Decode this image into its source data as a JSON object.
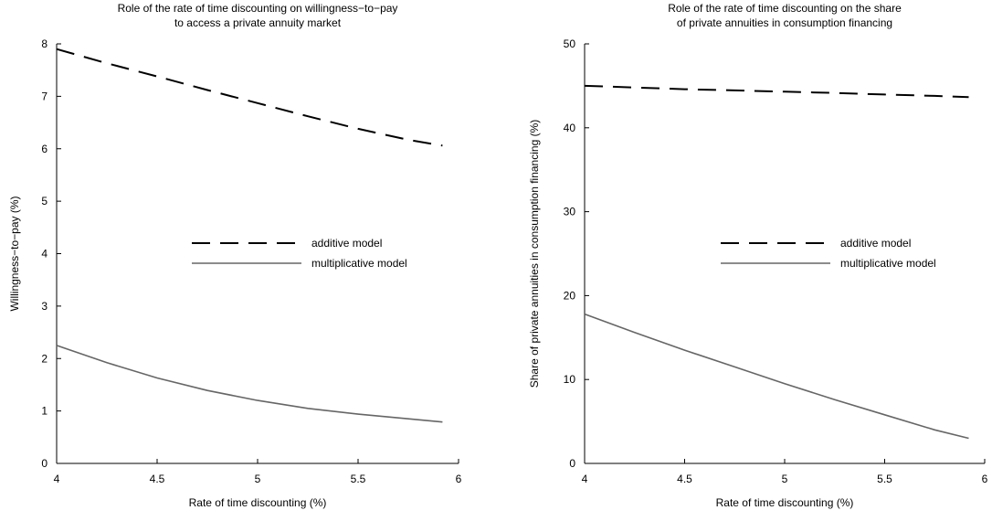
{
  "chart_data": [
    {
      "type": "line",
      "title_lines": [
        "Role of the rate of time discounting on willingness−to−pay",
        "to access a private annuity market"
      ],
      "xlabel": "Rate of time discounting (%)",
      "ylabel": "Willingness−to−pay (%)",
      "xlim": [
        4,
        6
      ],
      "ylim": [
        0,
        8
      ],
      "xticks": [
        4,
        4.5,
        5,
        5.5,
        6
      ],
      "xtick_labels": [
        "4",
        "4.5",
        "5",
        "5.5",
        "6"
      ],
      "yticks": [
        0,
        1,
        2,
        3,
        4,
        5,
        6,
        7,
        8
      ],
      "ytick_labels": [
        "0",
        "1",
        "2",
        "3",
        "4",
        "5",
        "6",
        "7",
        "8"
      ],
      "grid": false,
      "legend_position": "center-right",
      "x": [
        4.0,
        4.25,
        4.5,
        4.75,
        5.0,
        5.25,
        5.5,
        5.75,
        5.92
      ],
      "series": [
        {
          "name": "additive model",
          "style": "dashed",
          "color": "#000000",
          "values": [
            7.9,
            7.63,
            7.38,
            7.12,
            6.87,
            6.62,
            6.38,
            6.17,
            6.06
          ]
        },
        {
          "name": "multiplicative model",
          "style": "solid",
          "color": "#666666",
          "values": [
            2.25,
            1.92,
            1.63,
            1.39,
            1.2,
            1.05,
            0.94,
            0.85,
            0.79
          ]
        }
      ]
    },
    {
      "type": "line",
      "title_lines": [
        "Role of the rate of time discounting on the share",
        "of private annuities in consumption financing"
      ],
      "xlabel": "Rate of time discounting (%)",
      "ylabel": "Share of private annuities in consumption financing (%)",
      "xlim": [
        4,
        6
      ],
      "ylim": [
        0,
        50
      ],
      "xticks": [
        4,
        4.5,
        5,
        5.5,
        6
      ],
      "xtick_labels": [
        "4",
        "4.5",
        "5",
        "5.5",
        "6"
      ],
      "yticks": [
        0,
        10,
        20,
        30,
        40,
        50
      ],
      "ytick_labels": [
        "0",
        "10",
        "20",
        "30",
        "40",
        "50"
      ],
      "grid": false,
      "legend_position": "center-right",
      "x": [
        4.0,
        4.25,
        4.5,
        4.75,
        5.0,
        5.25,
        5.5,
        5.75,
        5.92
      ],
      "series": [
        {
          "name": "additive model",
          "style": "dashed",
          "color": "#000000",
          "values": [
            45.0,
            44.8,
            44.6,
            44.45,
            44.3,
            44.15,
            43.97,
            43.8,
            43.65
          ]
        },
        {
          "name": "multiplicative model",
          "style": "solid",
          "color": "#666666",
          "values": [
            17.8,
            15.6,
            13.5,
            11.5,
            9.5,
            7.6,
            5.8,
            4.0,
            3.0
          ]
        }
      ]
    }
  ]
}
